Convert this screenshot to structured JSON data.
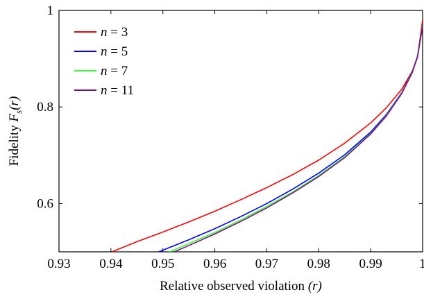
{
  "chart_data": {
    "type": "line",
    "xlabel": "Relative observed violation",
    "xlabel_var": "(r)",
    "ylabel": "Fidelity",
    "ylabel_var": "F",
    "ylabel_sub": "s",
    "ylabel_arg": "(r)",
    "xlim": [
      0.93,
      1.0
    ],
    "ylim": [
      0.5,
      1.0
    ],
    "x_ticks": [
      0.93,
      0.94,
      0.95,
      0.96,
      0.97,
      0.98,
      0.99,
      1
    ],
    "x_tick_labels": [
      "0.93",
      "0.94",
      "0.95",
      "0.96",
      "0.97",
      "0.98",
      "0.99",
      "1"
    ],
    "y_ticks": [
      0.6,
      0.8,
      1
    ],
    "y_tick_labels": [
      "0.6",
      "0.8",
      "1"
    ],
    "grid": false,
    "legend_position": "top-left",
    "series": [
      {
        "name": "n = 3",
        "legend_var": "n",
        "legend_value": "= 3",
        "color": "#ff0000",
        "x": [
          0.9402,
          0.945,
          0.95,
          0.955,
          0.96,
          0.965,
          0.97,
          0.975,
          0.98,
          0.985,
          0.99,
          0.993,
          0.996,
          0.998,
          0.999,
          1.0
        ],
        "y": [
          0.5,
          0.521,
          0.541,
          0.562,
          0.584,
          0.608,
          0.633,
          0.66,
          0.69,
          0.725,
          0.767,
          0.798,
          0.837,
          0.874,
          0.902,
          0.98
        ]
      },
      {
        "name": "n = 5",
        "legend_var": "n",
        "legend_value": "= 5",
        "color": "#0000ff",
        "x": [
          0.9492,
          0.955,
          0.96,
          0.965,
          0.97,
          0.975,
          0.98,
          0.985,
          0.99,
          0.993,
          0.996,
          0.998,
          0.999,
          1.0
        ],
        "y": [
          0.5,
          0.525,
          0.548,
          0.573,
          0.6,
          0.63,
          0.663,
          0.701,
          0.748,
          0.784,
          0.83,
          0.873,
          0.905,
          0.97
        ]
      },
      {
        "name": "n = 7",
        "legend_var": "n",
        "legend_value": "= 7",
        "color": "#33ff33",
        "x": [
          0.9513,
          0.955,
          0.96,
          0.965,
          0.97,
          0.975,
          0.98,
          0.985,
          0.99,
          0.993,
          0.996,
          0.998,
          0.999,
          1.0
        ],
        "y": [
          0.5,
          0.517,
          0.54,
          0.566,
          0.594,
          0.624,
          0.658,
          0.697,
          0.745,
          0.782,
          0.829,
          0.872,
          0.904,
          0.968
        ]
      },
      {
        "name": "n = 11",
        "legend_var": "n",
        "legend_value": "= 11",
        "color": "#7f0f7f",
        "x": [
          0.9522,
          0.955,
          0.96,
          0.965,
          0.97,
          0.975,
          0.98,
          0.985,
          0.99,
          0.993,
          0.996,
          0.998,
          0.999,
          1.0
        ],
        "y": [
          0.5,
          0.513,
          0.537,
          0.563,
          0.591,
          0.622,
          0.656,
          0.695,
          0.744,
          0.781,
          0.828,
          0.871,
          0.903,
          0.966
        ]
      }
    ]
  }
}
